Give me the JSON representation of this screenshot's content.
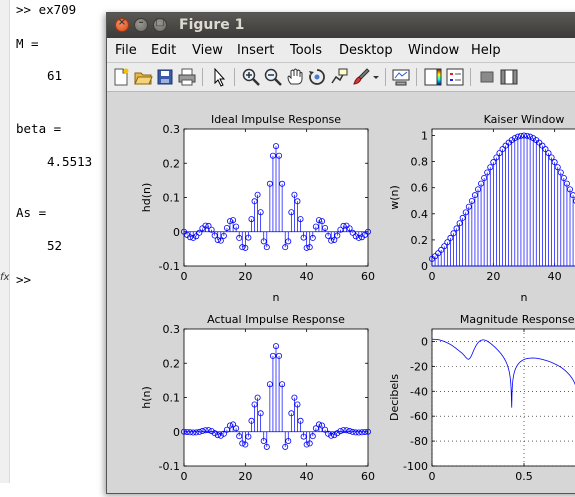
{
  "console": {
    "lines": [
      ">> ex709",
      "M =",
      "61",
      "beta =",
      "4.5513",
      "As =",
      "52",
      ">>"
    ],
    "fx": "fx"
  },
  "window": {
    "title": "Figure 1",
    "close_label": "×",
    "min_label": "–",
    "max_label": "□"
  },
  "menu": [
    "File",
    "Edit",
    "View",
    "Insert",
    "Tools",
    "Desktop",
    "Window",
    "Help"
  ],
  "toolbar": [
    "new-figure-icon",
    "open-file-icon",
    "save-icon",
    "print-icon",
    "pointer-icon",
    "zoom-in-icon",
    "zoom-out-icon",
    "pan-icon",
    "rotate-3d-icon",
    "data-cursor-icon",
    "brush-icon",
    "brush-dropdown-icon",
    "link-plot-icon",
    "colorbar-icon",
    "legend-icon",
    "hide-plot-tools-icon",
    "show-plot-tools-icon"
  ],
  "chart_data": [
    {
      "type": "stem",
      "title": "Ideal Impulse Response",
      "xlabel": "n",
      "ylabel": "hd(n)",
      "xlim": [
        0,
        60
      ],
      "ylim": [
        -0.1,
        0.3
      ],
      "xticks": [
        "0",
        "20",
        "40",
        "60"
      ],
      "yticks": [
        "-0.1",
        "0",
        "0.1",
        "0.2",
        "0.3"
      ],
      "color": "#0000ff",
      "x": [
        0,
        1,
        2,
        3,
        4,
        5,
        6,
        7,
        8,
        9,
        10,
        11,
        12,
        13,
        14,
        15,
        16,
        17,
        18,
        19,
        20,
        21,
        22,
        23,
        24,
        25,
        26,
        27,
        28,
        29,
        30,
        31,
        32,
        33,
        34,
        35,
        36,
        37,
        38,
        39,
        40,
        41,
        42,
        43,
        44,
        45,
        46,
        47,
        48,
        49,
        50,
        51,
        52,
        53,
        54,
        55,
        56,
        57,
        58,
        59,
        60
      ],
      "y": [
        0.0,
        -0.009,
        -0.016,
        -0.018,
        -0.013,
        -0.003,
        0.01,
        0.018,
        0.017,
        0.006,
        -0.011,
        -0.024,
        -0.026,
        -0.012,
        0.011,
        0.031,
        0.034,
        0.015,
        -0.018,
        -0.045,
        -0.047,
        -0.017,
        0.037,
        0.089,
        0.108,
        0.057,
        -0.028,
        -0.045,
        0.14,
        0.222,
        0.25,
        0.222,
        0.14,
        -0.045,
        -0.028,
        0.057,
        0.108,
        0.089,
        0.037,
        -0.017,
        -0.047,
        -0.045,
        -0.018,
        0.015,
        0.034,
        0.031,
        0.011,
        -0.012,
        -0.026,
        -0.024,
        -0.011,
        0.006,
        0.017,
        0.018,
        0.01,
        -0.003,
        -0.013,
        -0.018,
        -0.016,
        -0.009,
        0.0
      ]
    },
    {
      "type": "stem",
      "title": "Kaiser Window",
      "xlabel": "n",
      "ylabel": "w(n)",
      "xlim": [
        0,
        60
      ],
      "ylim": [
        0,
        1.05
      ],
      "xticks": [
        "0",
        "20",
        "40"
      ],
      "yticks": [
        "0",
        "0.2",
        "0.4",
        "0.6",
        "0.8",
        "1"
      ],
      "color": "#0000ff",
      "beta": 4.5513,
      "M": 61
    },
    {
      "type": "stem",
      "title": "Actual Impulse Response",
      "xlabel": "n",
      "ylabel": "h(n)",
      "xlim": [
        0,
        60
      ],
      "ylim": [
        -0.1,
        0.3
      ],
      "xticks": [
        "0",
        "20",
        "40",
        "60"
      ],
      "yticks": [
        "-0.1",
        "0",
        "0.1",
        "0.2",
        "0.3"
      ],
      "color": "#0000ff"
    },
    {
      "type": "line",
      "title": "Magnitude Response in",
      "xlabel": "",
      "ylabel": "Decibels",
      "xlim": [
        0,
        1
      ],
      "ylim": [
        -100,
        10
      ],
      "xticks": [
        "0",
        "0.5"
      ],
      "yticks": [
        "0",
        "-20",
        "-40",
        "-60",
        "-80",
        "-100"
      ],
      "grid": "dotted",
      "color": "#0000ff",
      "passband_db": 0,
      "stopband_db": -52
    }
  ]
}
